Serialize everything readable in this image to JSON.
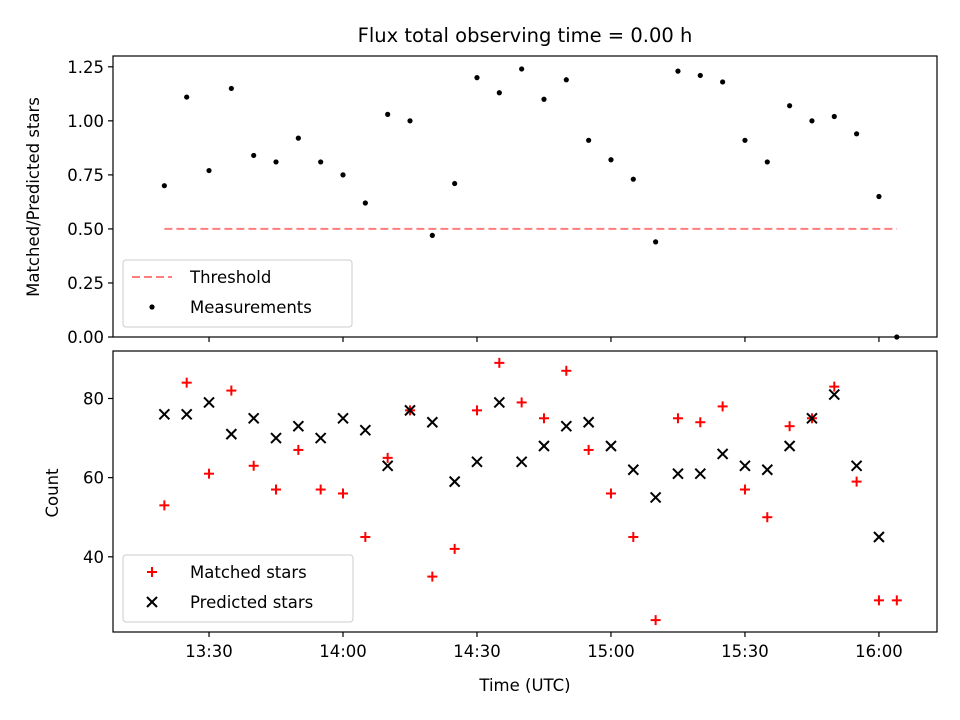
{
  "chart_data": [
    {
      "type": "scatter",
      "title": "Flux total observing time = 0.00 h",
      "xlabel": "",
      "ylabel": "Matched/Predicted stars",
      "ylim": [
        0,
        1.3
      ],
      "yticks": [
        "0.00",
        "0.25",
        "0.50",
        "0.75",
        "1.00",
        "1.25"
      ],
      "grid": false,
      "legend_position": "lower-left",
      "threshold": {
        "name": "Threshold",
        "value": 0.5,
        "x_start": "13:20",
        "x_end": "16:04",
        "color": "#ff7f7f",
        "style": "dashed"
      },
      "series": [
        {
          "name": "Measurements",
          "color": "#000000",
          "marker": "dot",
          "x": [
            "13:20",
            "13:25",
            "13:30",
            "13:35",
            "13:40",
            "13:45",
            "13:50",
            "13:55",
            "14:00",
            "14:05",
            "14:10",
            "14:15",
            "14:20",
            "14:25",
            "14:30",
            "14:35",
            "14:40",
            "14:45",
            "14:50",
            "14:55",
            "15:00",
            "15:05",
            "15:10",
            "15:15",
            "15:20",
            "15:25",
            "15:30",
            "15:35",
            "15:40",
            "15:45",
            "15:50",
            "15:55",
            "16:00",
            "16:04"
          ],
          "y": [
            0.7,
            1.11,
            0.77,
            1.15,
            0.84,
            0.81,
            0.92,
            0.81,
            0.75,
            0.62,
            1.03,
            1.0,
            0.47,
            0.71,
            1.2,
            1.13,
            1.24,
            1.1,
            1.19,
            0.91,
            0.82,
            0.73,
            0.44,
            1.23,
            1.21,
            1.18,
            0.91,
            0.81,
            1.07,
            1.0,
            1.02,
            0.94,
            0.65,
            0.0
          ]
        }
      ]
    },
    {
      "type": "scatter",
      "title": "",
      "xlabel": "Time (UTC)",
      "ylabel": "Count",
      "ylim": [
        21,
        92
      ],
      "yticks": [
        "40",
        "60",
        "80"
      ],
      "xticks": [
        "13:30",
        "14:00",
        "14:30",
        "15:00",
        "15:30",
        "16:00"
      ],
      "grid": false,
      "legend_position": "lower-left",
      "series": [
        {
          "name": "Matched stars",
          "color": "#ff0000",
          "marker": "plus",
          "x": [
            "13:20",
            "13:25",
            "13:30",
            "13:35",
            "13:40",
            "13:45",
            "13:50",
            "13:55",
            "14:00",
            "14:05",
            "14:10",
            "14:15",
            "14:20",
            "14:25",
            "14:30",
            "14:35",
            "14:40",
            "14:45",
            "14:50",
            "14:55",
            "15:00",
            "15:05",
            "15:10",
            "15:15",
            "15:20",
            "15:25",
            "15:30",
            "15:35",
            "15:40",
            "15:45",
            "15:50",
            "15:55",
            "16:00",
            "16:04"
          ],
          "y": [
            53,
            84,
            61,
            82,
            63,
            57,
            67,
            57,
            56,
            45,
            65,
            77,
            35,
            42,
            77,
            89,
            79,
            75,
            87,
            67,
            56,
            45,
            24,
            75,
            74,
            78,
            57,
            50,
            73,
            75,
            83,
            59,
            29,
            29
          ]
        },
        {
          "name": "Predicted stars",
          "color": "#000000",
          "marker": "x",
          "x": [
            "13:20",
            "13:25",
            "13:30",
            "13:35",
            "13:40",
            "13:45",
            "13:50",
            "13:55",
            "14:00",
            "14:05",
            "14:10",
            "14:15",
            "14:20",
            "14:25",
            "14:30",
            "14:35",
            "14:40",
            "14:45",
            "14:50",
            "14:55",
            "15:00",
            "15:05",
            "15:10",
            "15:15",
            "15:20",
            "15:25",
            "15:30",
            "15:35",
            "15:40",
            "15:45",
            "15:50",
            "15:55",
            "16:00"
          ],
          "y": [
            76,
            76,
            79,
            71,
            75,
            70,
            73,
            70,
            75,
            72,
            63,
            77,
            74,
            59,
            64,
            79,
            64,
            68,
            73,
            74,
            68,
            62,
            55,
            61,
            61,
            66,
            63,
            62,
            68,
            75,
            81,
            63,
            45
          ]
        }
      ]
    }
  ]
}
